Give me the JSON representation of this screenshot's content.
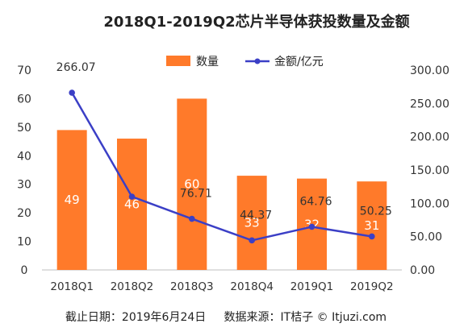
{
  "chart_data": {
    "type": "bar",
    "title": "2018Q1-2019Q2芯片半导体获投数量及金额",
    "categories": [
      "2018Q1",
      "2018Q2",
      "2018Q3",
      "2018Q4",
      "2019Q1",
      "2019Q2"
    ],
    "series": [
      {
        "name": "数量",
        "type": "bar",
        "axis": "left",
        "color": "#ff7a2a",
        "values": [
          49,
          46,
          60,
          33,
          32,
          31
        ],
        "labels": [
          "49",
          "46",
          "60",
          "33",
          "32",
          "31"
        ]
      },
      {
        "name": "金额/亿元",
        "type": "line",
        "axis": "right",
        "color": "#3b3fc6",
        "values": [
          266.07,
          110,
          76.71,
          44.37,
          64.76,
          50.25
        ],
        "labels": [
          "266.07",
          "",
          "76.71",
          "44.37",
          "64.76",
          "50.25"
        ]
      }
    ],
    "y_left": {
      "ylim": [
        0,
        70
      ],
      "ticks": [
        "0",
        "10",
        "20",
        "30",
        "40",
        "50",
        "60",
        "70"
      ]
    },
    "y_right": {
      "ylim": [
        0,
        300
      ],
      "ticks": [
        "0.00",
        "50.00",
        "100.00",
        "150.00",
        "200.00",
        "250.00",
        "300.00"
      ]
    },
    "legend_position": "top-center",
    "grid": false
  },
  "footer": {
    "source_text": "截止日期：2019年6月24日     数据来源：IT桔子 © Itjuzi.com"
  }
}
